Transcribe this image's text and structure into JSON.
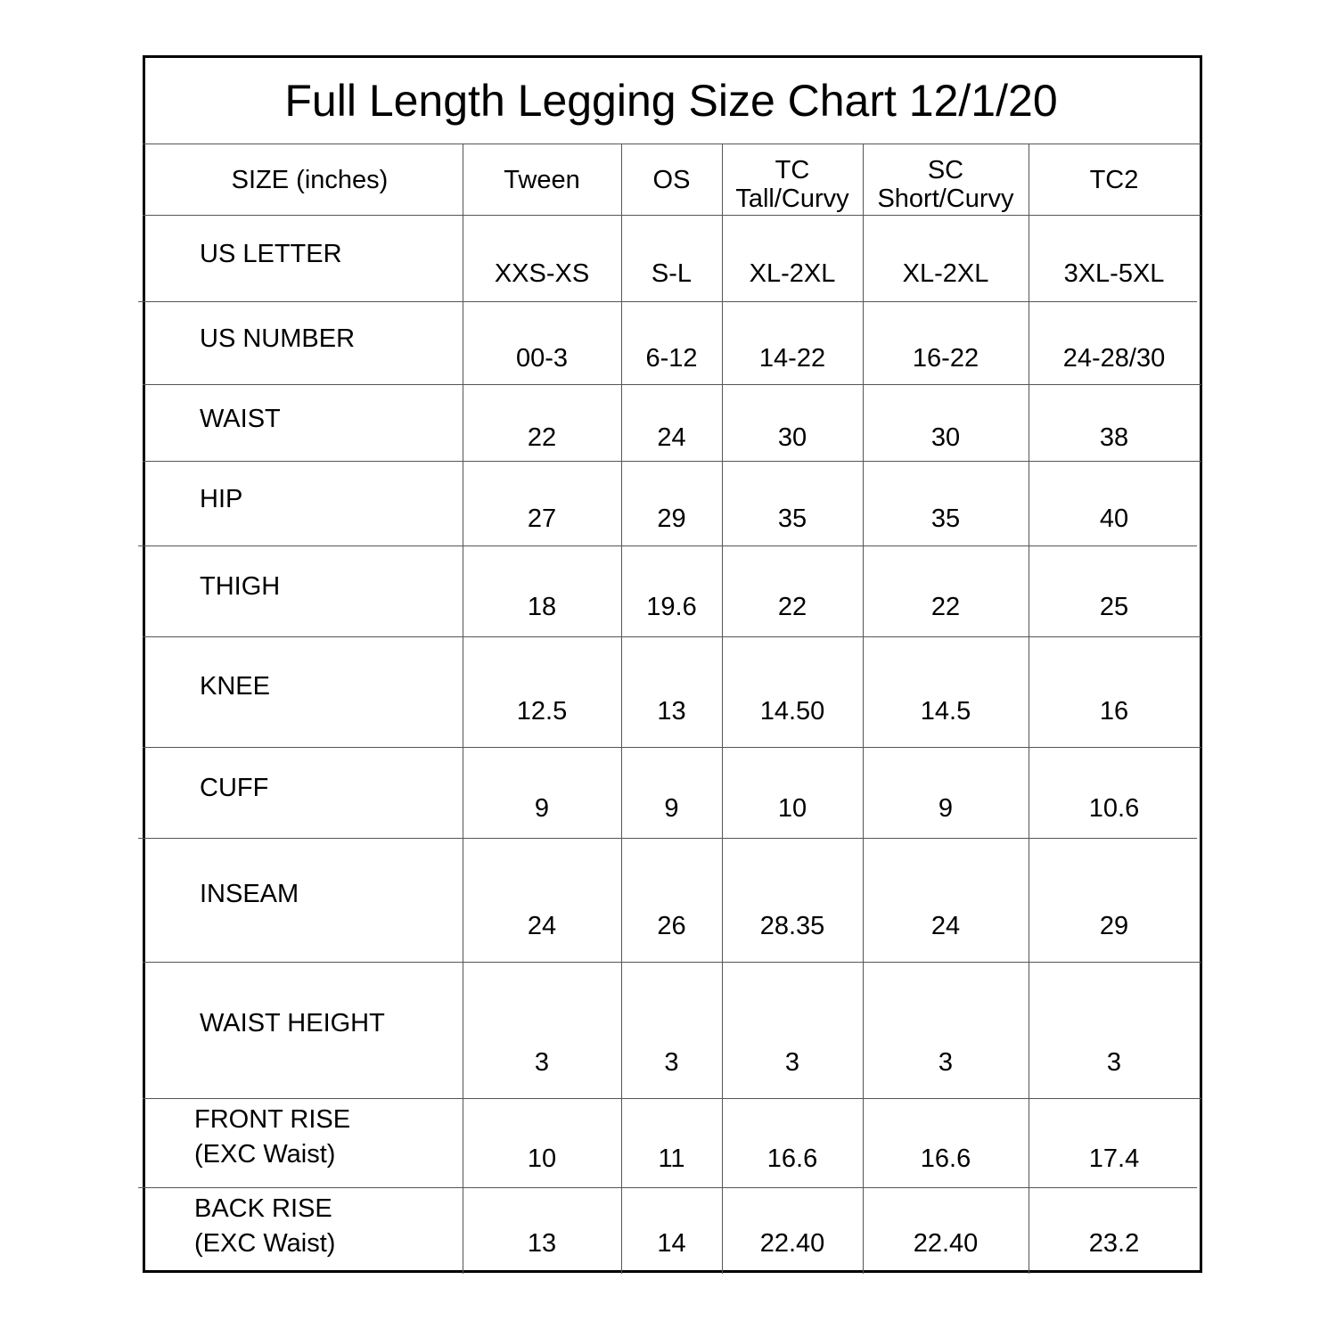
{
  "title": "Full Length Legging Size Chart 12/1/20",
  "header": {
    "label": "SIZE (inches)",
    "columns": [
      {
        "line1": "Tween",
        "line2": ""
      },
      {
        "line1": "OS",
        "line2": ""
      },
      {
        "line1": "TC",
        "line2": "Tall/Curvy"
      },
      {
        "line1": "SC",
        "line2": "Short/Curvy"
      },
      {
        "line1": "TC2",
        "line2": ""
      }
    ]
  },
  "rows": [
    {
      "label": "US LETTER",
      "label2": "",
      "values": [
        "XXS-XS",
        "S-L",
        "XL-2XL",
        "XL-2XL",
        "3XL-5XL"
      ]
    },
    {
      "label": "US NUMBER",
      "label2": "",
      "values": [
        "00-3",
        "6-12",
        "14-22",
        "16-22",
        "24-28/30"
      ]
    },
    {
      "label": "WAIST",
      "label2": "",
      "values": [
        "22",
        "24",
        "30",
        "30",
        "38"
      ]
    },
    {
      "label": "HIP",
      "label2": "",
      "values": [
        "27",
        "29",
        "35",
        "35",
        "40"
      ]
    },
    {
      "label": "THIGH",
      "label2": "",
      "values": [
        "18",
        "19.6",
        "22",
        "22",
        "25"
      ]
    },
    {
      "label": "KNEE",
      "label2": "",
      "values": [
        "12.5",
        "13",
        "14.50",
        "14.5",
        "16"
      ]
    },
    {
      "label": "CUFF",
      "label2": "",
      "values": [
        "9",
        "9",
        "10",
        "9",
        "10.6"
      ]
    },
    {
      "label": "INSEAM",
      "label2": "",
      "values": [
        "24",
        "26",
        "28.35",
        "24",
        "29"
      ]
    },
    {
      "label": "WAIST HEIGHT",
      "label2": "",
      "values": [
        "3",
        "3",
        "3",
        "3",
        "3"
      ]
    },
    {
      "label": "FRONT RISE",
      "label2": "(EXC Waist)",
      "values": [
        "10",
        "11",
        "16.6",
        "16.6",
        "17.4"
      ]
    },
    {
      "label": "BACK RISE",
      "label2": "(EXC Waist)",
      "values": [
        "13",
        "14",
        "22.40",
        "22.40",
        "23.2"
      ]
    }
  ]
}
